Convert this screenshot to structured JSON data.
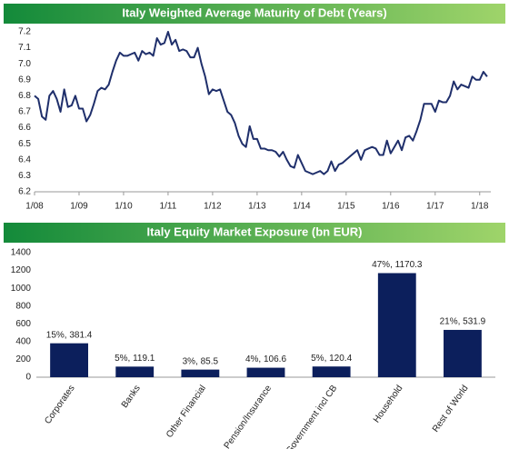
{
  "chart_data": [
    {
      "type": "line",
      "title": "Italy Weighted Average Maturity of Debt (Years)",
      "x": [
        "2008-01",
        "2008-02",
        "2008-03",
        "2008-04",
        "2008-05",
        "2008-06",
        "2008-07",
        "2008-08",
        "2008-09",
        "2008-10",
        "2008-11",
        "2008-12",
        "2009-01",
        "2009-02",
        "2009-03",
        "2009-04",
        "2009-05",
        "2009-06",
        "2009-07",
        "2009-08",
        "2009-09",
        "2009-10",
        "2009-11",
        "2009-12",
        "2010-01",
        "2010-02",
        "2010-03",
        "2010-04",
        "2010-05",
        "2010-06",
        "2010-07",
        "2010-08",
        "2010-09",
        "2010-10",
        "2010-11",
        "2010-12",
        "2011-01",
        "2011-02",
        "2011-03",
        "2011-04",
        "2011-05",
        "2011-06",
        "2011-07",
        "2011-08",
        "2011-09",
        "2011-10",
        "2011-11",
        "2011-12",
        "2012-01",
        "2012-02",
        "2012-03",
        "2012-04",
        "2012-05",
        "2012-06",
        "2012-07",
        "2012-08",
        "2012-09",
        "2012-10",
        "2012-11",
        "2012-12",
        "2013-01",
        "2013-02",
        "2013-03",
        "2013-04",
        "2013-05",
        "2013-06",
        "2013-07",
        "2013-08",
        "2013-09",
        "2013-10",
        "2013-11",
        "2013-12",
        "2014-01",
        "2014-02",
        "2014-03",
        "2014-04",
        "2014-05",
        "2014-06",
        "2014-07",
        "2014-08",
        "2014-09",
        "2014-10",
        "2014-11",
        "2014-12",
        "2015-01",
        "2015-02",
        "2015-03",
        "2015-04",
        "2015-05",
        "2015-06",
        "2015-07",
        "2015-08",
        "2015-09",
        "2015-10",
        "2015-11",
        "2015-12",
        "2016-01",
        "2016-02",
        "2016-03",
        "2016-04",
        "2016-05",
        "2016-06",
        "2016-07",
        "2016-08",
        "2016-09",
        "2016-10",
        "2016-11",
        "2016-12",
        "2017-01",
        "2017-02",
        "2017-03",
        "2017-04",
        "2017-05",
        "2017-06",
        "2017-07",
        "2017-08",
        "2017-09",
        "2017-10",
        "2017-11",
        "2017-12",
        "2018-01",
        "2018-02",
        "2018-03"
      ],
      "series": [
        {
          "name": "Weighted Average Maturity",
          "color": "#1f2f6b",
          "values": [
            6.8,
            6.78,
            6.67,
            6.65,
            6.8,
            6.83,
            6.78,
            6.7,
            6.84,
            6.73,
            6.74,
            6.8,
            6.72,
            6.72,
            6.64,
            6.68,
            6.75,
            6.83,
            6.85,
            6.84,
            6.87,
            6.95,
            7.02,
            7.07,
            7.05,
            7.05,
            7.06,
            7.07,
            7.02,
            7.08,
            7.06,
            7.07,
            7.05,
            7.16,
            7.12,
            7.13,
            7.2,
            7.12,
            7.15,
            7.08,
            7.09,
            7.08,
            7.04,
            7.04,
            7.1,
            7.0,
            6.92,
            6.81,
            6.84,
            6.83,
            6.84,
            6.77,
            6.7,
            6.68,
            6.63,
            6.55,
            6.5,
            6.48,
            6.61,
            6.53,
            6.53,
            6.47,
            6.47,
            6.46,
            6.46,
            6.45,
            6.42,
            6.45,
            6.4,
            6.36,
            6.35,
            6.43,
            6.38,
            6.33,
            6.32,
            6.31,
            6.32,
            6.33,
            6.31,
            6.33,
            6.39,
            6.33,
            6.37,
            6.38,
            6.4,
            6.42,
            6.44,
            6.46,
            6.4,
            6.46,
            6.47,
            6.48,
            6.47,
            6.43,
            6.43,
            6.52,
            6.44,
            6.48,
            6.52,
            6.46,
            6.54,
            6.55,
            6.52,
            6.58,
            6.65,
            6.75,
            6.75,
            6.75,
            6.7,
            6.77,
            6.76,
            6.76,
            6.8,
            6.89,
            6.84,
            6.87,
            6.86,
            6.85,
            6.92,
            6.9,
            6.9,
            6.95,
            6.92
          ]
        }
      ],
      "xlim": [
        "2008-01",
        "2018-04"
      ],
      "xticks": [
        {
          "value": "2008-01",
          "label": "1/08"
        },
        {
          "value": "2009-01",
          "label": "1/09"
        },
        {
          "value": "2010-01",
          "label": "1/10"
        },
        {
          "value": "2011-01",
          "label": "1/11"
        },
        {
          "value": "2012-01",
          "label": "1/12"
        },
        {
          "value": "2013-01",
          "label": "1/13"
        },
        {
          "value": "2014-01",
          "label": "1/14"
        },
        {
          "value": "2015-01",
          "label": "1/15"
        },
        {
          "value": "2016-01",
          "label": "1/16"
        },
        {
          "value": "2017-01",
          "label": "1/17"
        },
        {
          "value": "2018-01",
          "label": "1/18"
        }
      ],
      "ylim": [
        6.2,
        7.2
      ],
      "yticks": [
        6.2,
        6.3,
        6.4,
        6.5,
        6.6,
        6.7,
        6.8,
        6.9,
        {
          "value": 7,
          "label": "7.0"
        },
        7.1,
        7.2
      ]
    },
    {
      "type": "bar",
      "title": "Italy Equity Market Exposure (bn EUR)",
      "categories": [
        "Corporates",
        "Banks",
        "Other Financial",
        "Pension/Insurance",
        "Government incl CB",
        "Household",
        "Rest of World"
      ],
      "values": [
        381.4,
        119.1,
        85.5,
        106.6,
        120.4,
        1170.3,
        531.9
      ],
      "value_labels": [
        "15%, 381.4",
        "5%, 119.1",
        "3%, 85.5",
        "4%, 106.6",
        "5%, 120.4",
        "47%, 1170.3",
        "21%, 531.9"
      ],
      "color": "#0c1f5c",
      "ylim": [
        0,
        1400
      ],
      "yticks": [
        0,
        200,
        400,
        600,
        800,
        1000,
        1200,
        1400
      ]
    }
  ]
}
